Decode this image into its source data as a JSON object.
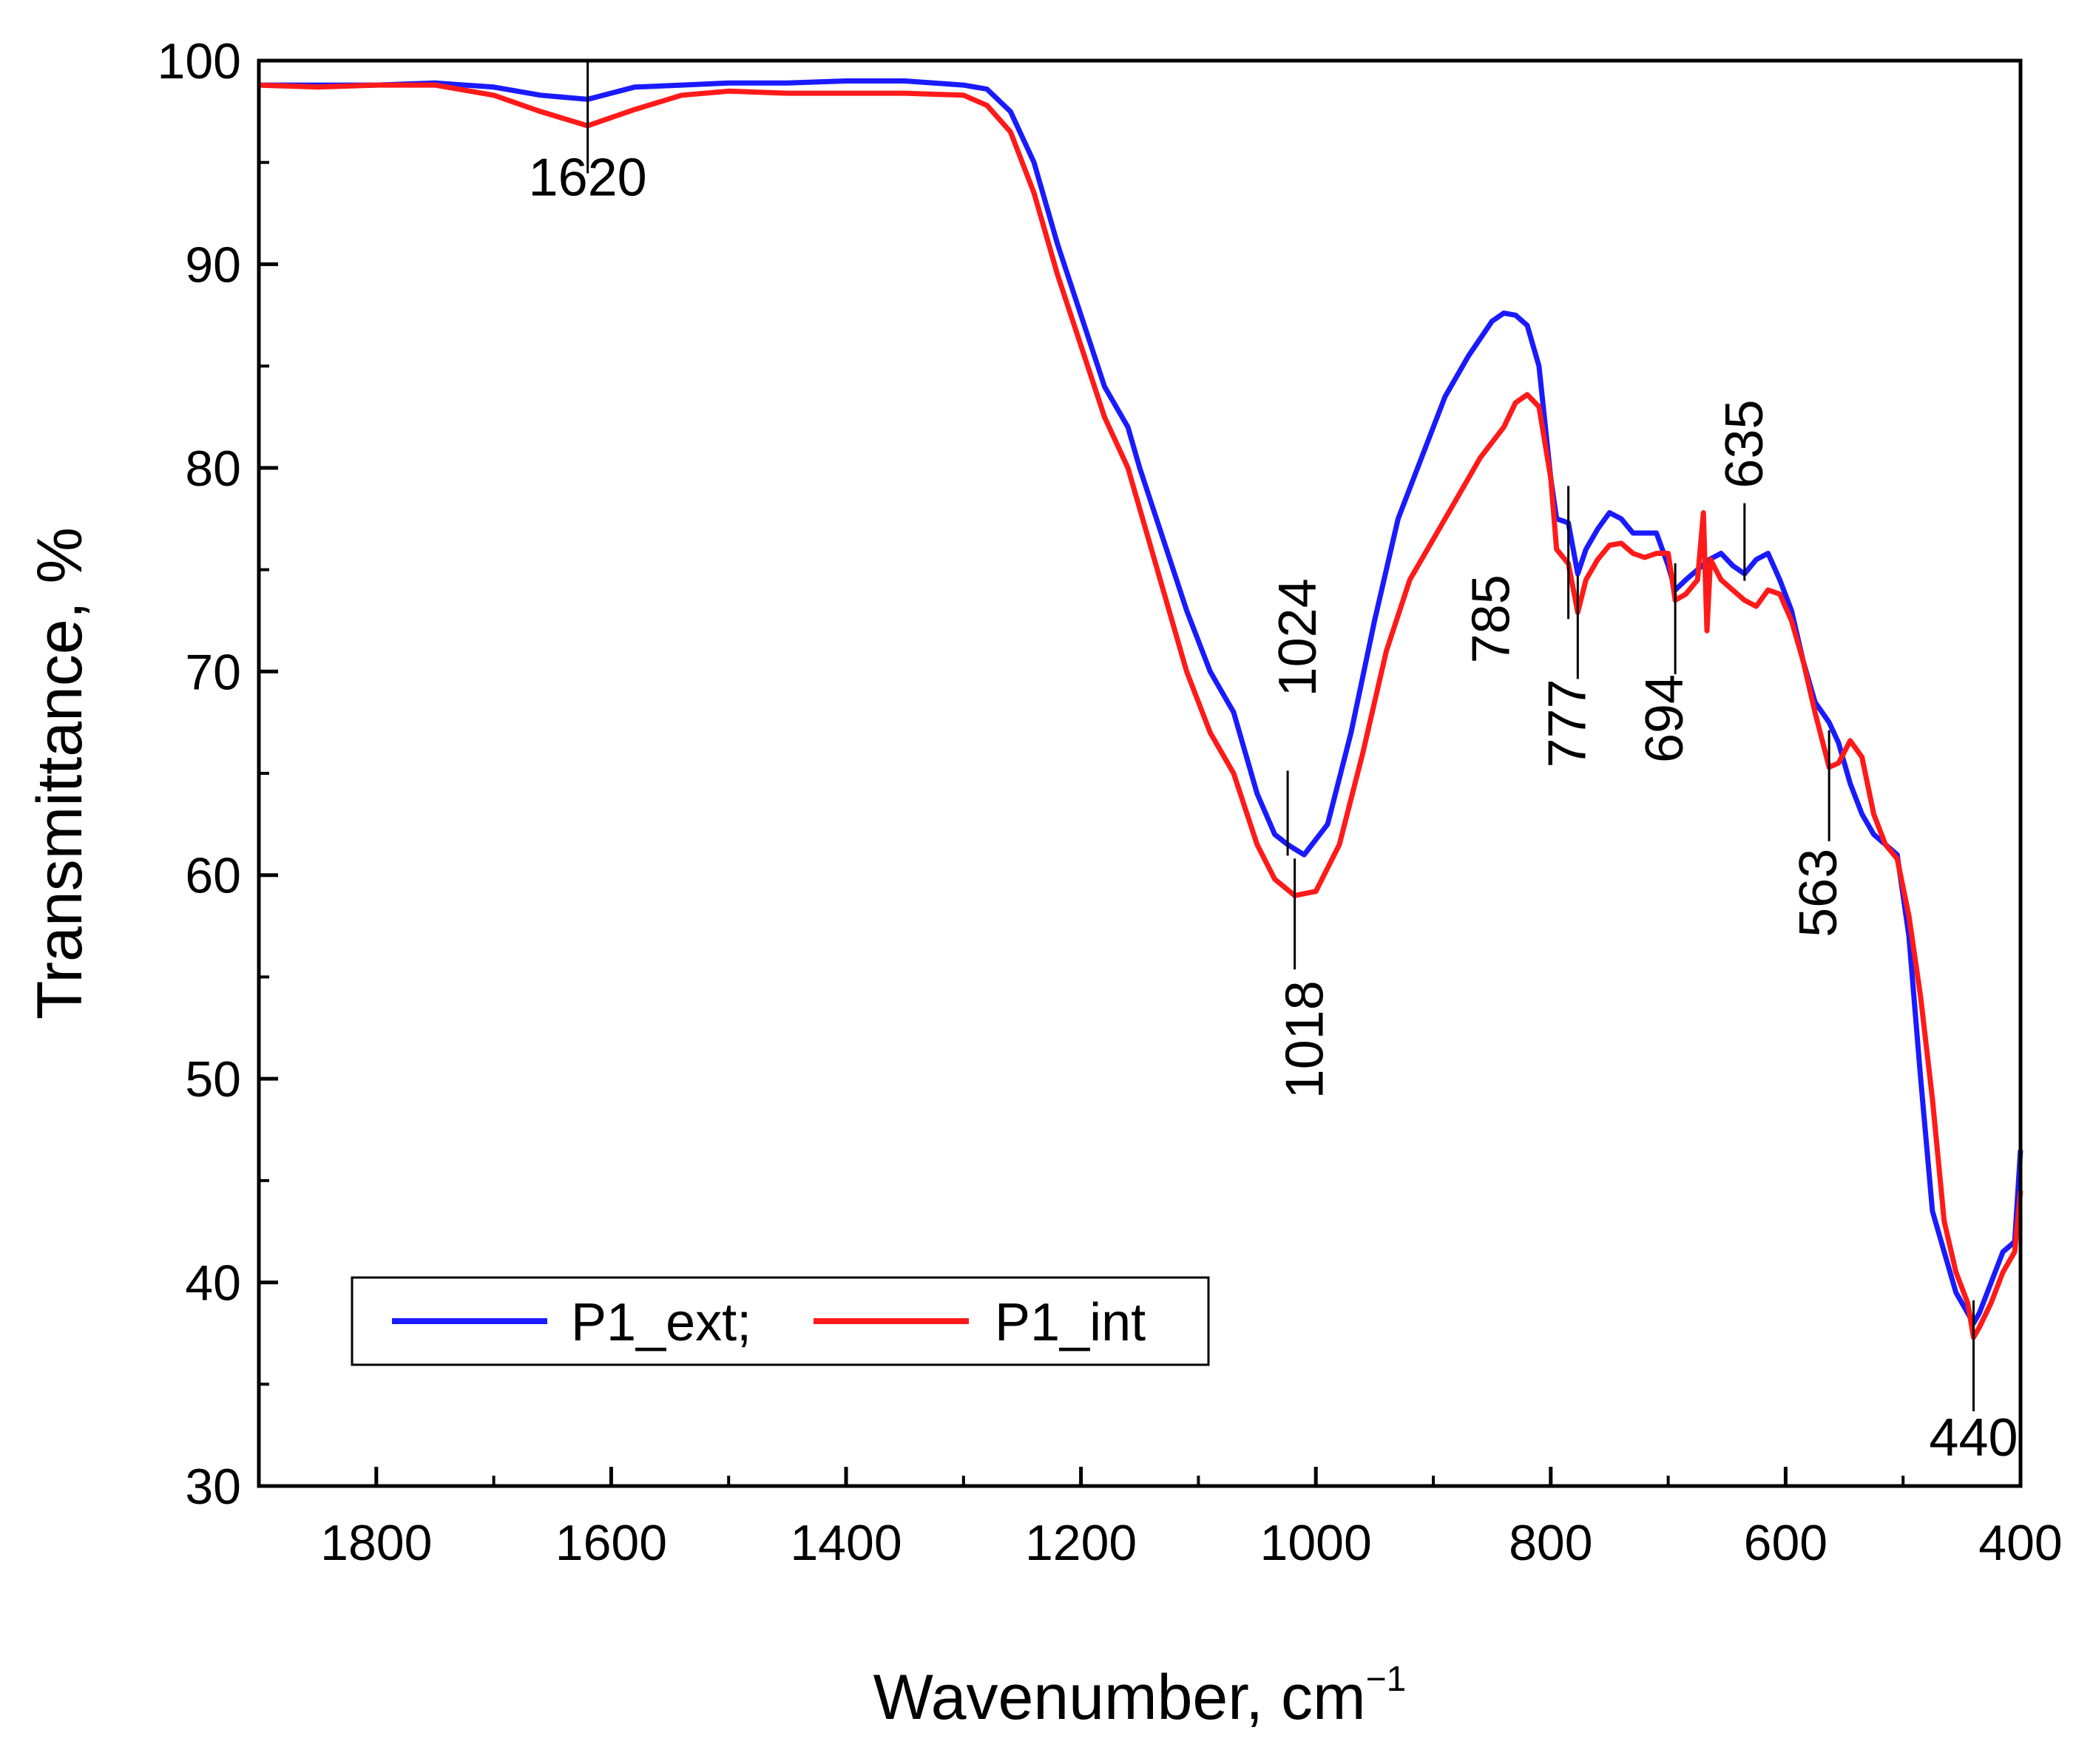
{
  "chart_data": {
    "type": "line",
    "title": "",
    "xlabel": "Wavenumber, cm",
    "xlabel_superscript": "−1",
    "ylabel": "Transmittance, %",
    "xlim": [
      1900,
      400
    ],
    "ylim": [
      30,
      100
    ],
    "x_ticks": [
      1800,
      1600,
      1400,
      1200,
      1000,
      800,
      600,
      400
    ],
    "x_tick_labels": [
      "1800",
      "1600",
      "1400",
      "1200",
      "1000",
      "800",
      "600",
      "400"
    ],
    "y_ticks": [
      30,
      40,
      50,
      60,
      70,
      80,
      90,
      100
    ],
    "y_tick_labels": [
      "30",
      "40",
      "50",
      "60",
      "70",
      "80",
      "90",
      "100"
    ],
    "grid": false,
    "legend_position": "bottom-left",
    "series": [
      {
        "name": "P1_ext;",
        "color": "#1a1aff",
        "x": [
          1900,
          1850,
          1800,
          1750,
          1700,
          1660,
          1620,
          1580,
          1540,
          1500,
          1450,
          1400,
          1350,
          1300,
          1280,
          1260,
          1240,
          1220,
          1200,
          1180,
          1160,
          1150,
          1130,
          1110,
          1090,
          1070,
          1050,
          1035,
          1024,
          1010,
          990,
          970,
          950,
          930,
          910,
          890,
          870,
          850,
          840,
          830,
          820,
          810,
          800,
          795,
          785,
          777,
          770,
          760,
          750,
          740,
          730,
          720,
          710,
          700,
          694,
          685,
          675,
          665,
          655,
          645,
          635,
          625,
          615,
          605,
          595,
          585,
          575,
          563,
          555,
          545,
          535,
          525,
          515,
          505,
          495,
          485,
          475,
          465,
          455,
          445,
          440,
          435,
          425,
          415,
          405,
          400
        ],
        "values": [
          98.8,
          98.8,
          98.8,
          98.9,
          98.7,
          98.3,
          98.1,
          98.7,
          98.8,
          98.9,
          98.9,
          99.0,
          99.0,
          98.8,
          98.6,
          97.5,
          95.0,
          91.0,
          87.5,
          84.0,
          82.0,
          80.0,
          76.5,
          73.0,
          70.0,
          68.0,
          64.0,
          62.0,
          61.5,
          61.0,
          62.5,
          67.0,
          72.5,
          77.5,
          80.5,
          83.5,
          85.5,
          87.2,
          87.6,
          87.5,
          87.0,
          85.0,
          79.5,
          77.5,
          77.3,
          74.8,
          76.0,
          77.0,
          77.8,
          77.5,
          76.8,
          76.8,
          76.8,
          75.2,
          74.0,
          74.5,
          75.0,
          75.5,
          75.8,
          75.2,
          74.8,
          75.5,
          75.8,
          74.5,
          73.0,
          70.5,
          68.5,
          67.5,
          66.5,
          64.5,
          63.0,
          62.0,
          61.5,
          61.0,
          57.0,
          50.0,
          43.5,
          41.5,
          39.5,
          38.5,
          38.0,
          38.5,
          40.0,
          41.5,
          42.0,
          46.5
        ]
      },
      {
        "name": "P1_int",
        "color": "#ff1a1a",
        "x": [
          1900,
          1850,
          1800,
          1750,
          1700,
          1660,
          1620,
          1580,
          1540,
          1500,
          1450,
          1400,
          1350,
          1300,
          1280,
          1260,
          1240,
          1220,
          1200,
          1180,
          1160,
          1150,
          1130,
          1110,
          1090,
          1070,
          1050,
          1035,
          1018,
          1000,
          980,
          960,
          940,
          920,
          900,
          880,
          860,
          840,
          830,
          820,
          810,
          800,
          795,
          785,
          777,
          770,
          760,
          750,
          740,
          730,
          720,
          710,
          700,
          694,
          685,
          675,
          670,
          667,
          664,
          655,
          645,
          635,
          625,
          615,
          605,
          595,
          585,
          575,
          563,
          555,
          545,
          535,
          525,
          515,
          505,
          495,
          485,
          475,
          465,
          455,
          445,
          440,
          435,
          425,
          415,
          405,
          400
        ],
        "values": [
          98.8,
          98.7,
          98.8,
          98.8,
          98.3,
          97.5,
          96.8,
          97.6,
          98.3,
          98.5,
          98.4,
          98.4,
          98.4,
          98.3,
          97.8,
          96.5,
          93.5,
          89.5,
          86.0,
          82.5,
          80.0,
          78.0,
          74.0,
          70.0,
          67.0,
          65.0,
          61.5,
          59.8,
          59.0,
          59.2,
          61.5,
          66.0,
          71.0,
          74.5,
          76.5,
          78.5,
          80.5,
          82.0,
          83.2,
          83.6,
          83.0,
          79.5,
          76.0,
          75.3,
          72.9,
          74.5,
          75.5,
          76.2,
          76.3,
          75.8,
          75.6,
          75.8,
          75.8,
          73.5,
          73.8,
          74.5,
          77.8,
          72.0,
          75.5,
          74.5,
          74.0,
          73.5,
          73.2,
          74.0,
          73.8,
          72.5,
          70.5,
          68.0,
          65.3,
          65.5,
          66.6,
          65.8,
          63.0,
          61.5,
          60.8,
          58.0,
          54.0,
          49.0,
          43.0,
          40.5,
          39.0,
          37.3,
          37.8,
          39.0,
          40.5,
          41.5,
          44.5
        ]
      }
    ],
    "annotations": [
      {
        "text": "1620",
        "x": 1620,
        "y": 98.1
      },
      {
        "text": "1024",
        "x": 1024,
        "y": 61.5
      },
      {
        "text": "1018",
        "x": 1018,
        "y": 59.0
      },
      {
        "text": "785",
        "x": 785,
        "y": 77.3
      },
      {
        "text": "777",
        "x": 777,
        "y": 72.9
      },
      {
        "text": "694",
        "x": 694,
        "y": 73.5
      },
      {
        "text": "635",
        "x": 635,
        "y": 75.0
      },
      {
        "text": "563",
        "x": 563,
        "y": 65.3
      },
      {
        "text": "440",
        "x": 440,
        "y": 37.3
      }
    ]
  }
}
